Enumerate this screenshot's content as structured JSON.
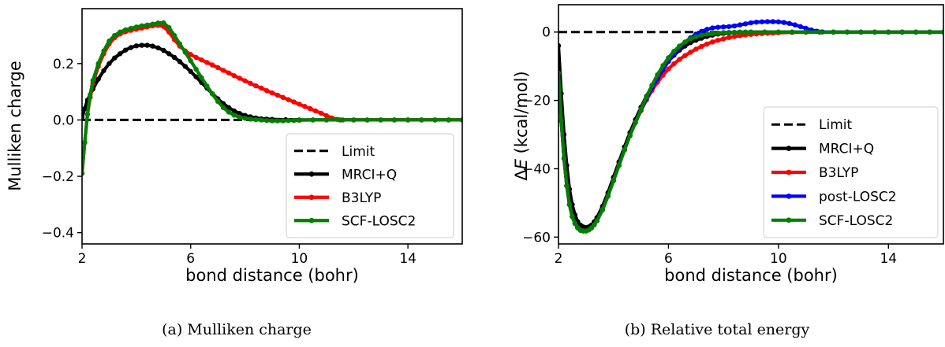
{
  "chart_data": [
    {
      "type": "line",
      "caption": "(a) Mulliken charge",
      "xlabel": "bond distance (bohr)",
      "ylabel": "Mulliken charge",
      "xlim": [
        2,
        16
      ],
      "ylim": [
        -0.44,
        0.395
      ],
      "xticks": [
        2,
        6,
        10,
        14
      ],
      "xtick_labels": [
        "2",
        "6",
        "10",
        "14"
      ],
      "yticks": [
        -0.4,
        -0.2,
        0.0,
        0.2
      ],
      "ytick_labels": [
        "−0.4",
        "−0.2",
        "0.0",
        "0.2"
      ],
      "legend_position": "lower-right",
      "series": [
        {
          "name": "Limit",
          "color": "#000000",
          "style": "dashed",
          "markers": false,
          "x": [
            2,
            16
          ],
          "y": [
            0,
            0
          ]
        },
        {
          "name": "MRCI+Q",
          "color": "#000000",
          "style": "solid",
          "markers": true,
          "x": [
            2.0,
            2.1,
            2.2,
            2.4,
            2.6,
            2.8,
            3.0,
            3.2,
            3.4,
            3.6,
            3.8,
            4.0,
            4.2,
            4.4,
            4.6,
            4.8,
            5.0,
            5.2,
            5.4,
            5.6,
            5.8,
            6.0,
            6.2,
            6.4,
            6.6,
            6.8,
            7.0,
            7.2,
            7.4,
            7.6,
            7.8,
            8.0,
            8.2,
            8.4,
            8.6,
            8.8,
            9.0,
            9.5,
            10.0,
            10.5,
            11.0,
            11.5,
            12.0,
            12.5,
            13.0,
            13.5,
            14.0,
            14.5,
            15.0,
            15.5,
            16.0
          ],
          "y": [
            0.01,
            0.04,
            0.07,
            0.11,
            0.145,
            0.175,
            0.2,
            0.22,
            0.235,
            0.248,
            0.257,
            0.263,
            0.265,
            0.265,
            0.262,
            0.256,
            0.247,
            0.235,
            0.222,
            0.207,
            0.19,
            0.172,
            0.153,
            0.133,
            0.113,
            0.093,
            0.075,
            0.058,
            0.044,
            0.032,
            0.023,
            0.016,
            0.011,
            0.007,
            0.004,
            0.003,
            0.002,
            0.001,
            0.0,
            0.0,
            0.0,
            0.0,
            0.0,
            0.0,
            0.0,
            0.0,
            0.0,
            0.0,
            0.0,
            0.0,
            0.0
          ]
        },
        {
          "name": "B3LYP",
          "color": "#ff0000",
          "style": "solid",
          "markers": true,
          "x": [
            2.0,
            2.1,
            2.2,
            2.3,
            2.4,
            2.6,
            2.8,
            3.0,
            3.2,
            3.4,
            3.6,
            3.8,
            4.0,
            4.2,
            4.4,
            4.6,
            4.8,
            5.0,
            5.2,
            5.4,
            5.6,
            5.8,
            6.0,
            6.2,
            6.4,
            6.6,
            6.8,
            7.0,
            7.2,
            7.4,
            7.6,
            7.8,
            8.0,
            8.2,
            8.4,
            8.6,
            8.8,
            9.0,
            9.2,
            9.4,
            9.6,
            9.8,
            10.0,
            10.2,
            10.4,
            10.6,
            10.8,
            11.0,
            11.2,
            11.4,
            11.6,
            12.0,
            12.5,
            13.0,
            13.5,
            14.0,
            14.5,
            15.0,
            15.5,
            16.0
          ],
          "y": [
            -0.19,
            -0.08,
            0.02,
            0.08,
            0.13,
            0.19,
            0.235,
            0.27,
            0.292,
            0.305,
            0.313,
            0.318,
            0.322,
            0.326,
            0.33,
            0.334,
            0.336,
            0.332,
            0.312,
            0.285,
            0.262,
            0.245,
            0.232,
            0.222,
            0.213,
            0.204,
            0.195,
            0.186,
            0.176,
            0.167,
            0.157,
            0.148,
            0.139,
            0.13,
            0.121,
            0.113,
            0.104,
            0.096,
            0.088,
            0.08,
            0.072,
            0.064,
            0.056,
            0.048,
            0.04,
            0.032,
            0.024,
            0.015,
            0.007,
            0.002,
            0.0,
            0.0,
            0.0,
            0.0,
            0.0,
            0.0,
            0.0,
            0.0,
            0.0,
            0.0
          ]
        },
        {
          "name": "SCF-LOSC2",
          "color": "#008000",
          "style": "solid",
          "markers": true,
          "x": [
            2.0,
            2.1,
            2.2,
            2.3,
            2.4,
            2.6,
            2.8,
            3.0,
            3.2,
            3.4,
            3.6,
            3.8,
            4.0,
            4.2,
            4.4,
            4.6,
            4.8,
            5.0,
            5.2,
            5.4,
            5.6,
            5.8,
            6.0,
            6.2,
            6.4,
            6.6,
            6.8,
            7.0,
            7.2,
            7.4,
            7.6,
            7.8,
            8.0,
            8.2,
            8.4,
            8.6,
            8.8,
            9.0,
            9.2,
            9.4,
            9.6,
            9.8,
            10.0,
            10.5,
            11.0,
            11.5,
            12.0,
            12.5,
            13.0,
            13.5,
            14.0,
            14.5,
            15.0,
            15.5,
            16.0
          ],
          "y": [
            -0.19,
            -0.08,
            0.02,
            0.09,
            0.14,
            0.2,
            0.245,
            0.28,
            0.3,
            0.312,
            0.32,
            0.325,
            0.33,
            0.334,
            0.337,
            0.34,
            0.344,
            0.345,
            0.328,
            0.3,
            0.27,
            0.24,
            0.21,
            0.18,
            0.15,
            0.12,
            0.092,
            0.066,
            0.044,
            0.028,
            0.017,
            0.01,
            0.006,
            0.003,
            0.001,
            0.0,
            -0.002,
            -0.003,
            -0.003,
            -0.003,
            -0.002,
            -0.002,
            -0.001,
            0.0,
            0.0,
            0.0,
            0.0,
            0.0,
            0.0,
            0.0,
            0.0,
            0.0,
            0.0,
            0.0,
            0.0
          ]
        }
      ]
    },
    {
      "type": "line",
      "caption": "(b) Relative total energy",
      "xlabel": "bond distance (bohr)",
      "ylabel_prefix": "Δ",
      "ylabel_italic": "E",
      "ylabel_suffix": " (kcal/mol)",
      "xlim": [
        2,
        16
      ],
      "ylim": [
        -62,
        8
      ],
      "xticks": [
        2,
        6,
        10,
        14
      ],
      "xtick_labels": [
        "2",
        "6",
        "10",
        "14"
      ],
      "yticks": [
        -60,
        -40,
        -20,
        0
      ],
      "ytick_labels": [
        "−60",
        "−40",
        "−20",
        "0"
      ],
      "legend_position": "lower-right",
      "series": [
        {
          "name": "Limit",
          "color": "#000000",
          "style": "dashed",
          "markers": false,
          "x": [
            2,
            16
          ],
          "y": [
            0,
            0
          ]
        },
        {
          "name": "MRCI+Q",
          "color": "#000000",
          "style": "solid",
          "markers": true,
          "x": [
            2.0,
            2.1,
            2.2,
            2.3,
            2.4,
            2.5,
            2.6,
            2.7,
            2.8,
            2.9,
            3.0,
            3.1,
            3.2,
            3.3,
            3.4,
            3.6,
            3.8,
            4.0,
            4.2,
            4.4,
            4.6,
            4.8,
            5.0,
            5.2,
            5.4,
            5.6,
            5.8,
            6.0,
            6.2,
            6.4,
            6.6,
            6.8,
            7.0,
            7.2,
            7.4,
            7.6,
            7.8,
            8.0,
            8.2,
            8.4,
            8.6,
            8.8,
            9.0,
            9.5,
            10.0,
            10.5,
            11.0,
            11.5,
            12.0,
            12.5,
            13.0,
            13.5,
            14.0,
            14.5,
            15.0,
            15.5,
            16.0
          ],
          "y": [
            -4,
            -18,
            -30,
            -39,
            -46,
            -50.5,
            -53.5,
            -55.5,
            -56.5,
            -57,
            -57.2,
            -57,
            -56.5,
            -55.5,
            -54.3,
            -51,
            -47,
            -42.5,
            -38,
            -33.6,
            -29.4,
            -25.6,
            -22,
            -18.8,
            -15.8,
            -13,
            -10.6,
            -8.5,
            -6.8,
            -5.3,
            -4.1,
            -3.1,
            -2.4,
            -1.8,
            -1.3,
            -0.9,
            -0.6,
            -0.4,
            -0.25,
            -0.15,
            -0.1,
            -0.05,
            0,
            0,
            0,
            0,
            0,
            0,
            0,
            0,
            0,
            0,
            0,
            0,
            0,
            0,
            0
          ]
        },
        {
          "name": "B3LYP",
          "color": "#ff0000",
          "style": "solid",
          "markers": true,
          "x": [
            2.0,
            2.1,
            2.2,
            2.3,
            2.4,
            2.5,
            2.6,
            2.7,
            2.8,
            2.9,
            3.0,
            3.1,
            3.2,
            3.3,
            3.4,
            3.6,
            3.8,
            4.0,
            4.2,
            4.4,
            4.6,
            4.8,
            5.0,
            5.2,
            5.4,
            5.6,
            5.8,
            6.0,
            6.2,
            6.4,
            6.6,
            6.8,
            7.0,
            7.2,
            7.4,
            7.6,
            7.8,
            8.0,
            8.2,
            8.4,
            8.6,
            8.8,
            9.0,
            9.2,
            9.4,
            9.6,
            9.8,
            10.0,
            10.5,
            11.0,
            11.5,
            12.0,
            12.5,
            13.0,
            13.5,
            14.0,
            14.5,
            15.0,
            15.5,
            16.0
          ],
          "y": [
            -12,
            -26,
            -37,
            -45,
            -50.5,
            -54,
            -56,
            -57.3,
            -58,
            -58.2,
            -58.2,
            -57.9,
            -57.3,
            -56.4,
            -55.2,
            -52,
            -48,
            -43.5,
            -39,
            -34.5,
            -30.3,
            -26.5,
            -23,
            -19.9,
            -17.1,
            -14.7,
            -12.6,
            -10.8,
            -9.3,
            -8,
            -6.9,
            -5.9,
            -5,
            -4.2,
            -3.5,
            -2.9,
            -2.4,
            -2,
            -1.6,
            -1.3,
            -1.05,
            -0.85,
            -0.7,
            -0.55,
            -0.45,
            -0.35,
            -0.28,
            -0.2,
            -0.1,
            -0.05,
            0,
            0,
            0,
            0,
            0,
            0,
            0,
            0,
            0,
            0
          ]
        },
        {
          "name": "post-LOSC2",
          "color": "#0000ff",
          "style": "solid",
          "markers": true,
          "x": [
            2.0,
            2.1,
            2.2,
            2.3,
            2.4,
            2.5,
            2.6,
            2.7,
            2.8,
            2.9,
            3.0,
            3.1,
            3.2,
            3.3,
            3.4,
            3.6,
            3.8,
            4.0,
            4.2,
            4.4,
            4.6,
            4.8,
            5.0,
            5.2,
            5.4,
            5.6,
            5.8,
            6.0,
            6.2,
            6.4,
            6.6,
            6.8,
            7.0,
            7.2,
            7.4,
            7.6,
            7.8,
            8.0,
            8.2,
            8.4,
            8.6,
            8.8,
            9.0,
            9.2,
            9.4,
            9.6,
            9.8,
            10.0,
            10.2,
            10.4,
            10.6,
            10.8,
            11.0,
            11.2,
            11.4,
            11.6,
            12.0,
            12.5,
            13.0,
            13.5,
            14.0,
            14.5,
            15.0,
            15.5,
            16.0
          ],
          "y": [
            -12,
            -26,
            -37,
            -45,
            -50.5,
            -54,
            -56,
            -57.3,
            -58,
            -58.2,
            -58.2,
            -57.9,
            -57.3,
            -56.4,
            -55.2,
            -52,
            -48,
            -43.5,
            -39,
            -34.5,
            -30.3,
            -26.5,
            -22.8,
            -19.5,
            -16.4,
            -13.6,
            -11,
            -8.6,
            -6.5,
            -4.6,
            -3,
            -1.7,
            -0.6,
            0.2,
            0.8,
            1.2,
            1.4,
            1.5,
            1.6,
            1.8,
            2.1,
            2.4,
            2.7,
            2.9,
            3.0,
            3.05,
            3.05,
            3.0,
            2.8,
            2.5,
            2.1,
            1.6,
            1.1,
            0.6,
            0.25,
            0.05,
            0,
            0,
            0,
            0,
            0,
            0,
            0,
            0,
            0
          ]
        },
        {
          "name": "SCF-LOSC2",
          "color": "#008000",
          "style": "solid",
          "markers": true,
          "x": [
            2.0,
            2.1,
            2.2,
            2.3,
            2.4,
            2.5,
            2.6,
            2.7,
            2.8,
            2.9,
            3.0,
            3.1,
            3.2,
            3.3,
            3.4,
            3.6,
            3.8,
            4.0,
            4.2,
            4.4,
            4.6,
            4.8,
            5.0,
            5.2,
            5.4,
            5.6,
            5.8,
            6.0,
            6.2,
            6.4,
            6.6,
            6.8,
            7.0,
            7.2,
            7.4,
            7.6,
            7.8,
            8.0,
            8.2,
            8.4,
            8.6,
            8.8,
            9.0,
            9.5,
            10.0,
            10.5,
            11.0,
            11.5,
            12.0,
            12.5,
            13.0,
            13.5,
            14.0,
            14.5,
            15.0,
            15.5,
            16.0
          ],
          "y": [
            -12,
            -26,
            -37,
            -45,
            -50.5,
            -54,
            -56,
            -57.3,
            -58,
            -58.2,
            -58.2,
            -57.9,
            -57.3,
            -56.4,
            -55.2,
            -52,
            -48,
            -43.5,
            -39,
            -34.5,
            -30.3,
            -26.5,
            -22.6,
            -19,
            -15.6,
            -12.5,
            -9.8,
            -7.5,
            -5.6,
            -4.1,
            -2.9,
            -2.0,
            -1.4,
            -0.9,
            -0.6,
            -0.4,
            -0.25,
            -0.15,
            -0.1,
            -0.05,
            0,
            0,
            0,
            0,
            0,
            0,
            0,
            0,
            0,
            0,
            0,
            0,
            0,
            0,
            0,
            0,
            0
          ]
        }
      ]
    }
  ]
}
